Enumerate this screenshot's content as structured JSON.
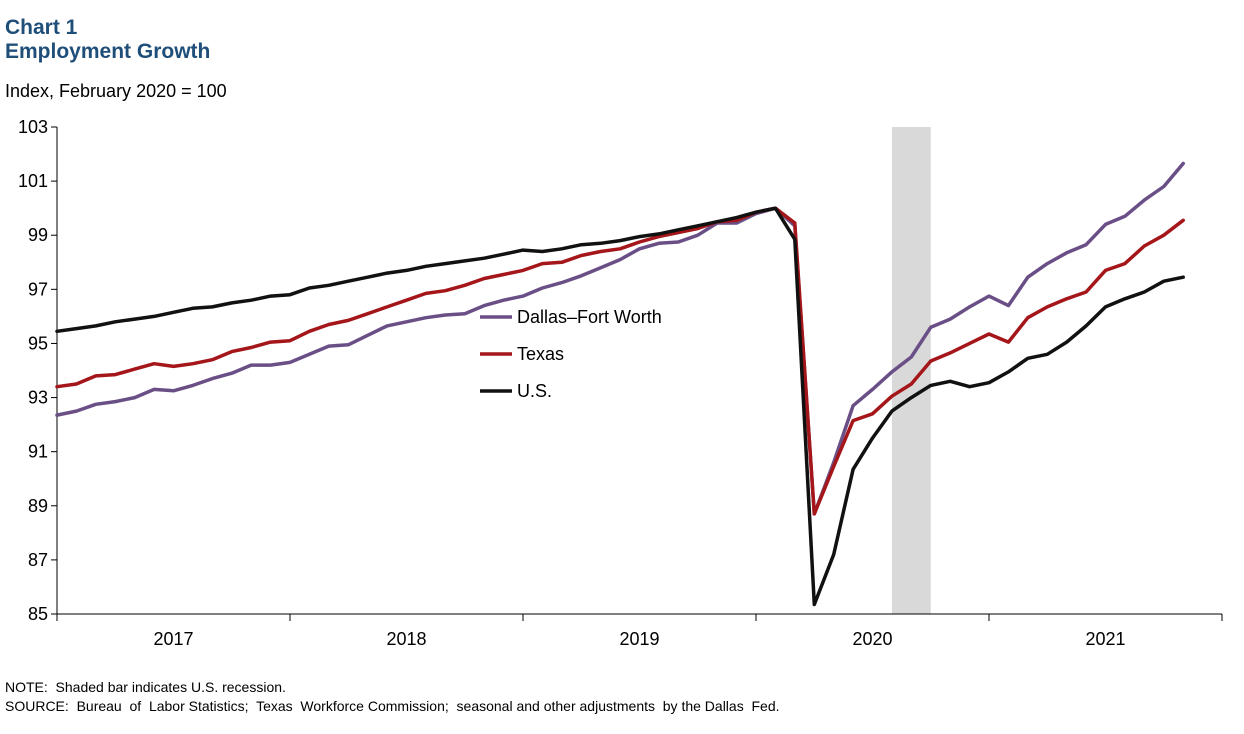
{
  "chart_label": "Chart 1",
  "title": "Employment  Growth",
  "units": "Index, February 2020 = 100",
  "note": "NOTE:  Shaded bar indicates U.S. recession.",
  "source": "SOURCE:  Bureau  of  Labor Statistics;  Texas  Workforce Commission;  seasonal and other adjustments  by the Dallas  Fed.",
  "chart_data": {
    "type": "line",
    "x_start": "2016-07",
    "x_end": "2021-07",
    "ylim": [
      85,
      103
    ],
    "yticks": [
      85,
      87,
      89,
      91,
      93,
      95,
      97,
      99,
      101,
      103
    ],
    "xtick_labels": [
      "2017",
      "2018",
      "2019",
      "2020",
      "2021"
    ],
    "grid": false,
    "legend_position": "center-left",
    "recession": {
      "start": "2020-02",
      "end": "2020-04",
      "color": "#d9d9d9"
    },
    "series": [
      {
        "name": "Dallas–Fort Worth",
        "color": "#6a4f86",
        "start": "2016-07",
        "values": [
          92.35,
          92.5,
          92.75,
          92.85,
          93.0,
          93.3,
          93.25,
          93.45,
          93.7,
          93.9,
          94.2,
          94.2,
          94.3,
          94.6,
          94.9,
          94.95,
          95.3,
          95.65,
          95.8,
          95.95,
          96.05,
          96.1,
          96.4,
          96.6,
          96.75,
          97.05,
          97.25,
          97.5,
          97.8,
          98.1,
          98.5,
          98.7,
          98.75,
          99.0,
          99.45,
          99.45,
          99.8,
          100.0,
          99.35,
          88.7,
          90.6,
          92.7,
          93.3,
          93.95,
          94.5,
          95.6,
          95.9,
          96.35,
          96.75,
          96.4,
          97.45,
          97.95,
          98.35,
          98.65,
          99.4,
          99.7,
          100.3,
          100.8,
          101.65
        ]
      },
      {
        "name": "Texas",
        "color": "#a4161a",
        "start": "2016-07",
        "values": [
          93.4,
          93.5,
          93.8,
          93.85,
          94.05,
          94.25,
          94.15,
          94.25,
          94.4,
          94.7,
          94.85,
          95.05,
          95.1,
          95.45,
          95.7,
          95.85,
          96.1,
          96.35,
          96.6,
          96.85,
          96.95,
          97.15,
          97.4,
          97.55,
          97.7,
          97.95,
          98.0,
          98.25,
          98.4,
          98.5,
          98.75,
          98.95,
          99.1,
          99.25,
          99.5,
          99.55,
          99.85,
          100.0,
          99.45,
          88.7,
          90.45,
          92.15,
          92.4,
          93.05,
          93.5,
          94.35,
          94.65,
          95.0,
          95.35,
          95.05,
          95.95,
          96.35,
          96.65,
          96.9,
          97.7,
          97.95,
          98.6,
          99.0,
          99.55
        ]
      },
      {
        "name": "U.S.",
        "color": "#111111",
        "start": "2016-07",
        "values": [
          95.45,
          95.55,
          95.65,
          95.8,
          95.9,
          96.0,
          96.15,
          96.3,
          96.35,
          96.5,
          96.6,
          96.75,
          96.8,
          97.05,
          97.15,
          97.3,
          97.45,
          97.6,
          97.7,
          97.85,
          97.95,
          98.05,
          98.15,
          98.3,
          98.45,
          98.4,
          98.5,
          98.65,
          98.7,
          98.8,
          98.95,
          99.05,
          99.2,
          99.35,
          99.5,
          99.65,
          99.85,
          100.0,
          98.85,
          85.35,
          87.2,
          90.35,
          91.5,
          92.5,
          93.0,
          93.45,
          93.6,
          93.4,
          93.55,
          93.95,
          94.45,
          94.6,
          95.05,
          95.65,
          96.35,
          96.65,
          96.9,
          97.3,
          97.45
        ]
      }
    ]
  }
}
